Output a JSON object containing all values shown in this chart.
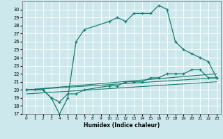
{
  "xlabel": "Humidex (Indice chaleur)",
  "bg_color": "#cce8ec",
  "grid_color": "#ffffff",
  "line_color": "#1a7a6e",
  "xlim": [
    -0.5,
    23.5
  ],
  "ylim": [
    17,
    31
  ],
  "yticks": [
    17,
    18,
    19,
    20,
    21,
    22,
    23,
    24,
    25,
    26,
    27,
    28,
    29,
    30
  ],
  "xticks": [
    0,
    1,
    2,
    3,
    4,
    5,
    6,
    7,
    8,
    9,
    10,
    11,
    12,
    13,
    14,
    15,
    16,
    17,
    18,
    19,
    20,
    21,
    22,
    23
  ],
  "series1_x": [
    0,
    1,
    2,
    3,
    4,
    5,
    6,
    7,
    10,
    11,
    12,
    13,
    14,
    15,
    16,
    17,
    18,
    19,
    20,
    21,
    22,
    23
  ],
  "series1_y": [
    20,
    20,
    20,
    19,
    17,
    19,
    26,
    27.5,
    28.5,
    29,
    28.5,
    29.5,
    29.5,
    29.5,
    30.5,
    30,
    26,
    25,
    24.5,
    24,
    23.5,
    21.5
  ],
  "series2_x": [
    0,
    2,
    3,
    4,
    5,
    6,
    7,
    10,
    11,
    12,
    13,
    14,
    15,
    16,
    17,
    18,
    19,
    20,
    21,
    22,
    23
  ],
  "series2_y": [
    20,
    20,
    19,
    18.5,
    19.5,
    19.5,
    20,
    20.5,
    20.5,
    21,
    21,
    21,
    21.5,
    21.5,
    22,
    22,
    22,
    22.5,
    22.5,
    21.5,
    21.5
  ],
  "series3_x": [
    0,
    23
  ],
  "series3_y": [
    20,
    21.5
  ],
  "series4_x": [
    0,
    23
  ],
  "series4_y": [
    20,
    22.0
  ],
  "series5_x": [
    0,
    23
  ],
  "series5_y": [
    19.5,
    21.0
  ]
}
